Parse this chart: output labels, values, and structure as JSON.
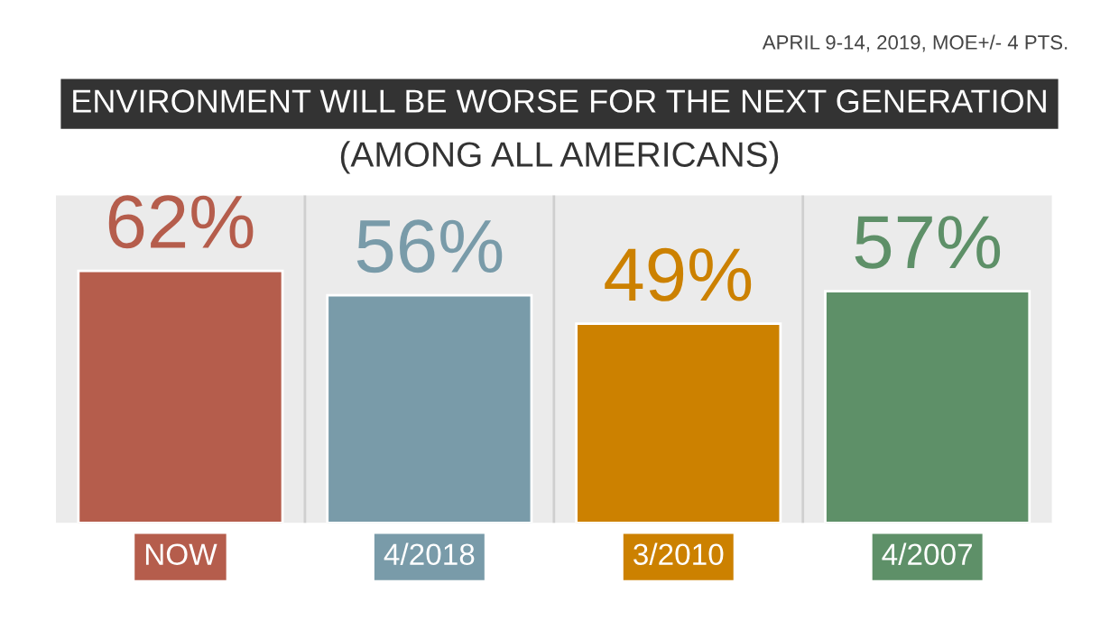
{
  "chart_data": {
    "type": "bar",
    "title": "ENVIRONMENT WILL BE WORSE FOR THE NEXT GENERATION",
    "subtitle": "(AMONG ALL AMERICANS)",
    "annotations": [
      "APRIL 9-14, 2019, MOE+/- 4 PTS."
    ],
    "categories": [
      "NOW",
      "4/2018",
      "3/2010",
      "4/2007"
    ],
    "values": [
      62,
      56,
      49,
      57
    ],
    "colors": [
      "#b55d4c",
      "#799ba9",
      "#cc8100",
      "#5e9068"
    ],
    "value_labels": [
      "62%",
      "56%",
      "49%",
      "57%"
    ]
  }
}
